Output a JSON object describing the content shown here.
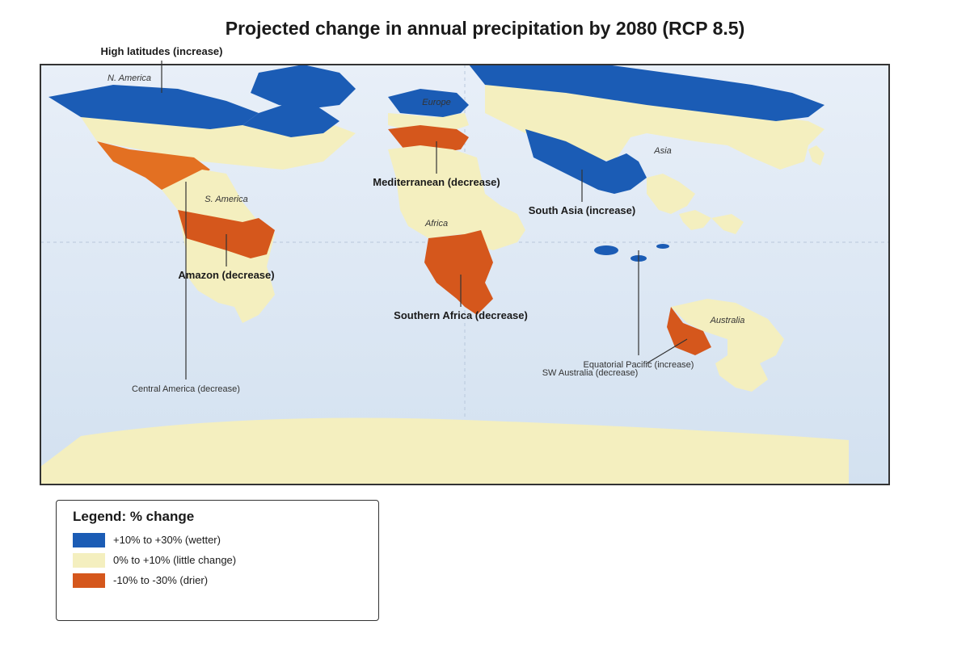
{
  "title": "Projected change in annual precipitation by 2080 (RCP 8.5)",
  "colors": {
    "wetter": "#1b5cb5",
    "little_change": "#f4efbf",
    "drier": "#d5571c",
    "drier_light": "#e37022",
    "ocean_top": "#e8eff8",
    "ocean_bottom": "#d3e1f0"
  },
  "continents": {
    "north_america": "N. America",
    "south_america": "S. America",
    "europe": "Europe",
    "africa": "Africa",
    "asia": "Asia",
    "australia": "Australia"
  },
  "annotations": {
    "high_latitudes": "High latitudes (increase)",
    "mediterranean": "Mediterranean (decrease)",
    "south_asia": "South Asia (increase)",
    "amazon": "Amazon (decrease)",
    "southern_africa": "Southern Africa (decrease)",
    "equatorial_pacific": "Equatorial Pacific (increase)",
    "sw_australia": "SW Australia (decrease)",
    "central_america": "Central America (decrease)"
  },
  "legend": {
    "title": "Legend: % change",
    "items": [
      {
        "label": "+10% to +30% (wetter)",
        "color": "#1b5cb5"
      },
      {
        "label": "0% to +10% (little change)",
        "color": "#f4efbf"
      },
      {
        "label": "-10% to -30% (drier)",
        "color": "#d5571c"
      }
    ]
  }
}
